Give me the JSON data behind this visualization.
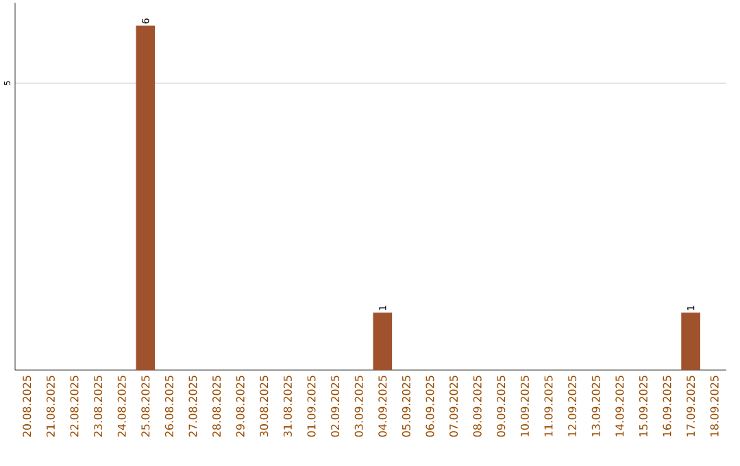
{
  "chart_data": {
    "type": "bar",
    "categories": [
      "20.08.2025",
      "21.08.2025",
      "22.08.2025",
      "23.08.2025",
      "24.08.2025",
      "25.08.2025",
      "26.08.2025",
      "27.08.2025",
      "28.08.2025",
      "29.08.2025",
      "30.08.2025",
      "31.08.2025",
      "01.09.2025",
      "02.09.2025",
      "03.09.2025",
      "04.09.2025",
      "05.09.2025",
      "06.09.2025",
      "07.09.2025",
      "08.09.2025",
      "09.09.2025",
      "10.09.2025",
      "11.09.2025",
      "12.09.2025",
      "13.09.2025",
      "14.09.2025",
      "15.09.2025",
      "16.09.2025",
      "17.09.2025",
      "18.09.2025"
    ],
    "values": [
      0,
      0,
      0,
      0,
      0,
      6,
      0,
      0,
      0,
      0,
      0,
      0,
      0,
      0,
      0,
      1,
      0,
      0,
      0,
      0,
      0,
      0,
      0,
      0,
      0,
      0,
      0,
      0,
      1,
      0
    ],
    "value_labels": [
      null,
      null,
      null,
      null,
      null,
      "6",
      null,
      null,
      null,
      null,
      null,
      null,
      null,
      null,
      null,
      "1",
      null,
      null,
      null,
      null,
      null,
      null,
      null,
      null,
      null,
      null,
      null,
      null,
      "1",
      null
    ],
    "color": "#a0522d",
    "ylim": [
      0,
      6.4
    ],
    "yticks": [
      5
    ],
    "grid": "y"
  }
}
